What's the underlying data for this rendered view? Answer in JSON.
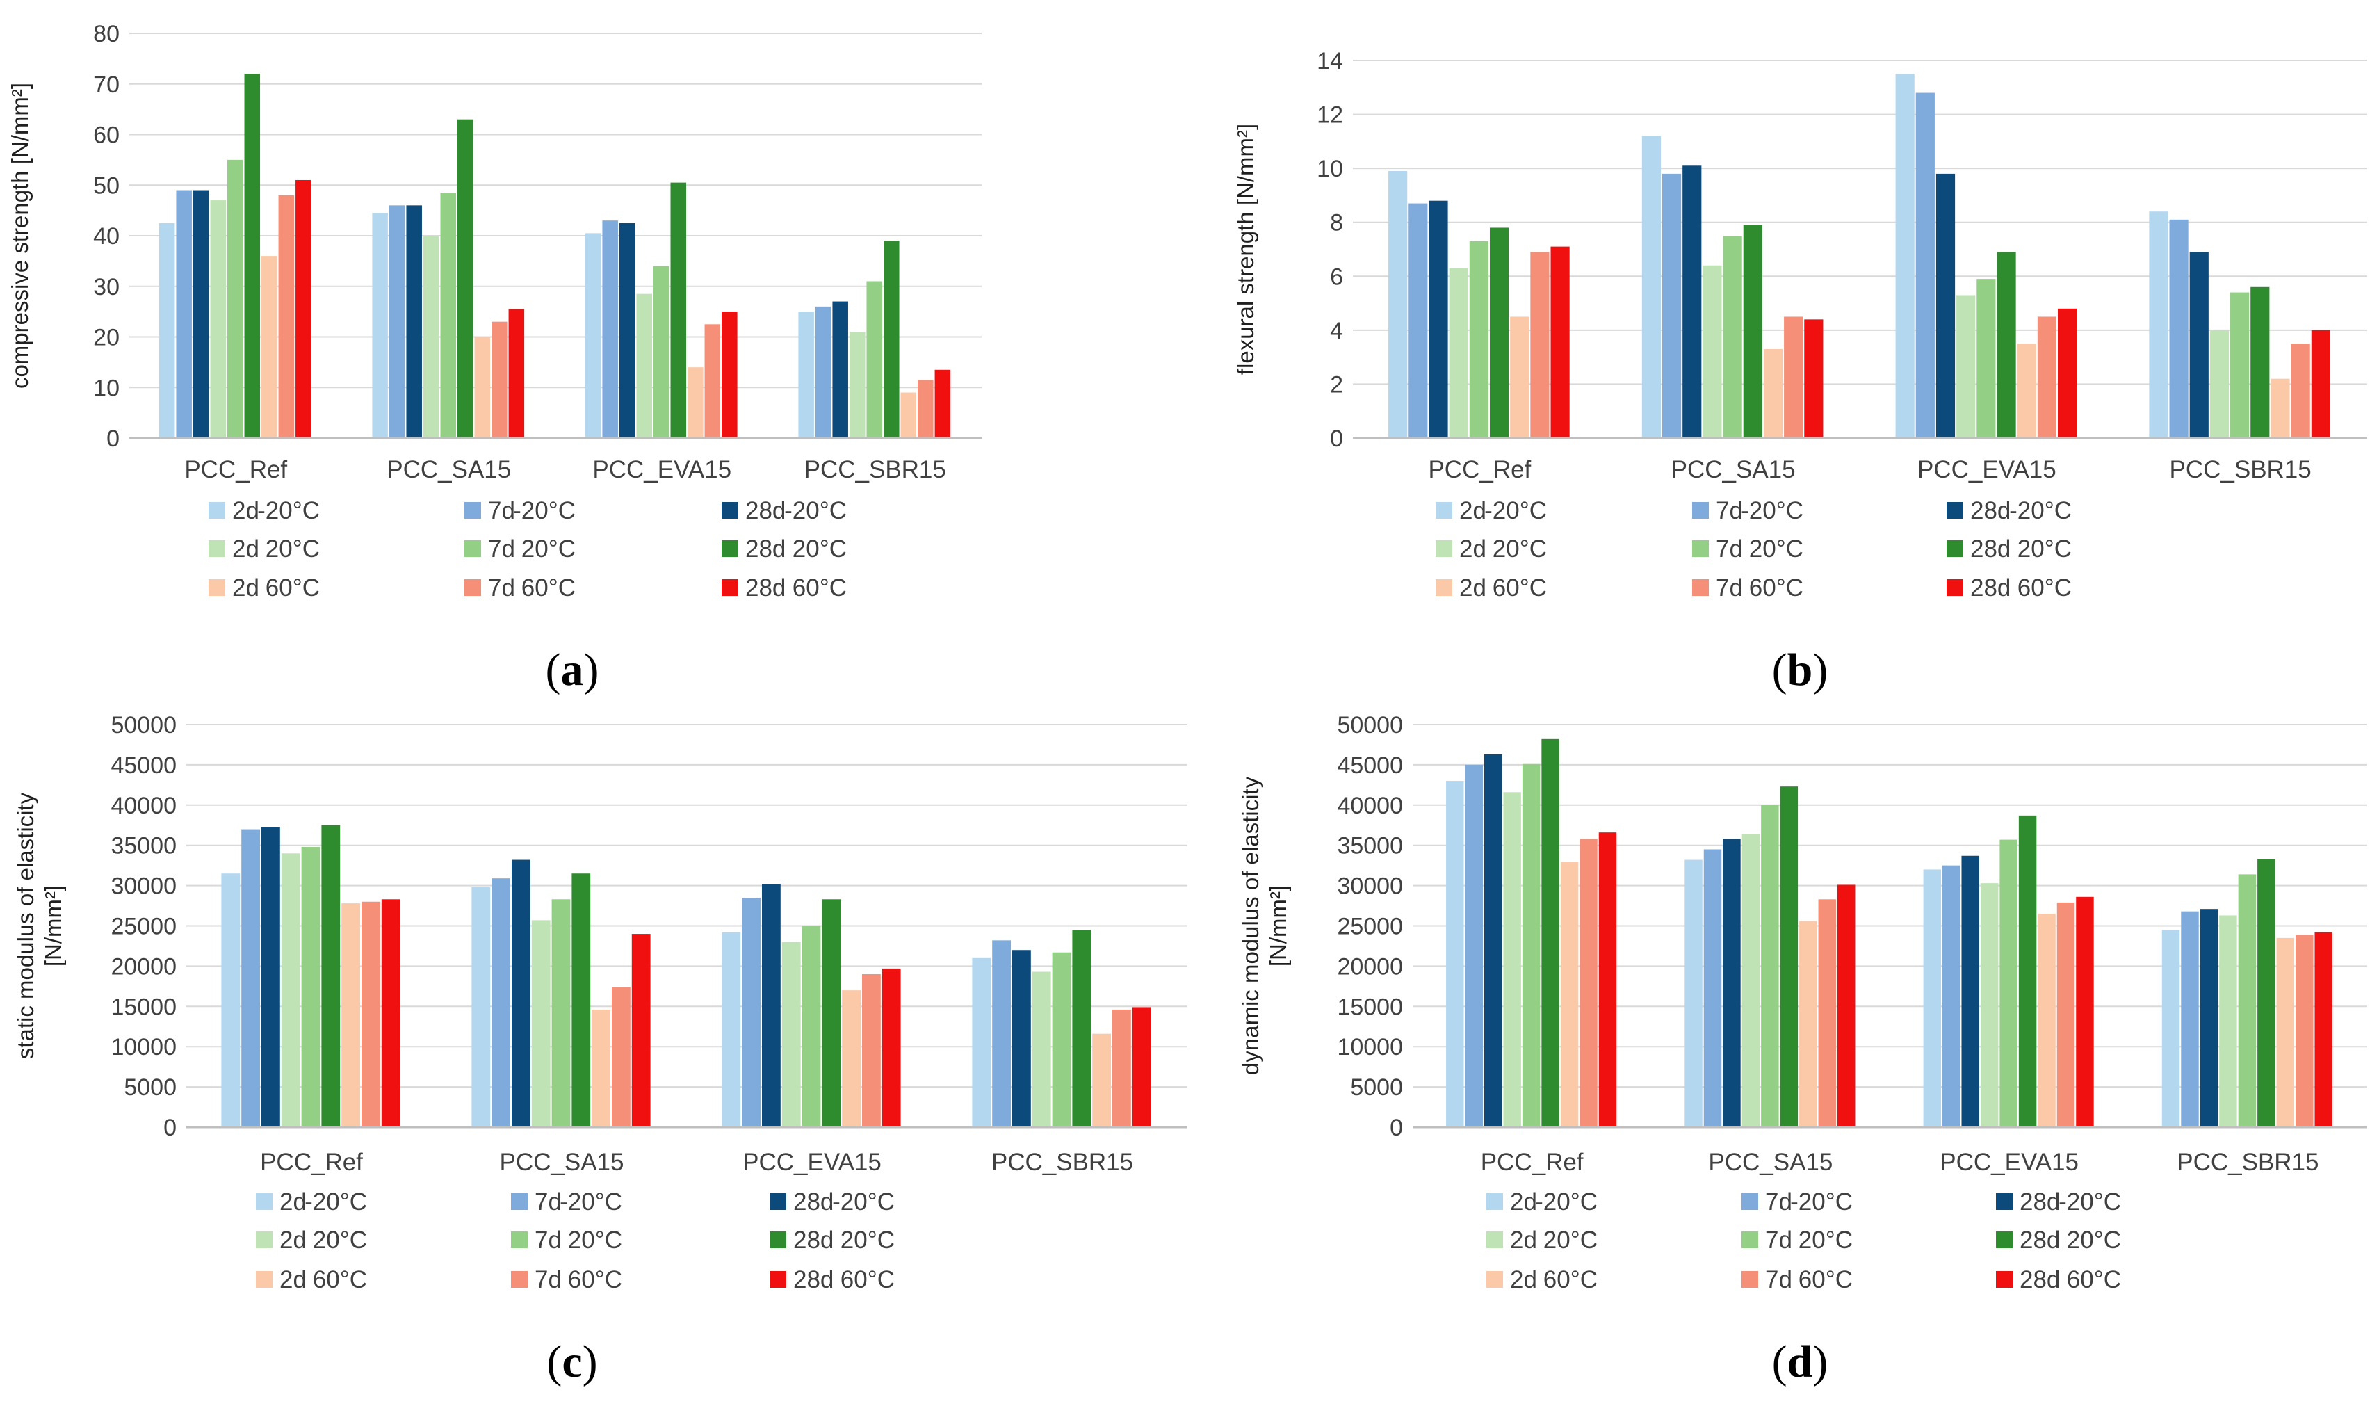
{
  "series_colors": [
    "#b4d7f0",
    "#7faadc",
    "#0b4a7a",
    "#bfe3b4",
    "#93cf84",
    "#2e8b2e",
    "#fcc9a8",
    "#f58f78",
    "#f01010"
  ],
  "chart_data": [
    {
      "type": "bar",
      "panel": "a",
      "panel_label": {
        "open": "(",
        "letter": "a",
        "close": ")"
      },
      "title": "",
      "xlabel": "",
      "ylabel": "compressive strength [N/mm²]",
      "ylim": [
        0,
        80
      ],
      "yticks": [
        "0",
        "10",
        "20",
        "30",
        "40",
        "50",
        "60",
        "70",
        "80"
      ],
      "categories": [
        "PCC_Ref",
        "PCC_SA15",
        "PCC_EVA15",
        "PCC_SBR15"
      ],
      "grid": true,
      "legend_position": "bottom",
      "series": [
        {
          "name": "2d -20°C",
          "age": "2d",
          "temp": "-20°C",
          "values": [
            42.5,
            44.5,
            40.5,
            25.0
          ]
        },
        {
          "name": "7d -20°C",
          "age": "7d",
          "temp": "-20°C",
          "values": [
            49.0,
            46.0,
            43.0,
            26.0
          ]
        },
        {
          "name": "28d -20°C",
          "age": "28d",
          "temp": "-20°C",
          "values": [
            49.0,
            46.0,
            42.5,
            27.0
          ]
        },
        {
          "name": "2d 20°C",
          "age": "2d",
          "temp": "20°C",
          "values": [
            47.0,
            40.0,
            28.5,
            21.0
          ]
        },
        {
          "name": "7d 20°C",
          "age": "7d",
          "temp": "20°C",
          "values": [
            55.0,
            48.5,
            34.0,
            31.0
          ]
        },
        {
          "name": "28d 20°C",
          "age": "28d",
          "temp": "20°C",
          "values": [
            72.0,
            63.0,
            50.5,
            39.0
          ]
        },
        {
          "name": "2d 60°C",
          "age": "2d",
          "temp": "60°C",
          "values": [
            36.0,
            20.0,
            14.0,
            9.0
          ]
        },
        {
          "name": "7d 60°C",
          "age": "7d",
          "temp": "60°C",
          "values": [
            48.0,
            23.0,
            22.5,
            11.5
          ]
        },
        {
          "name": "28d 60°C",
          "age": "28d",
          "temp": "60°C",
          "values": [
            51.0,
            25.5,
            25.0,
            13.5
          ]
        }
      ]
    },
    {
      "type": "bar",
      "panel": "b",
      "panel_label": {
        "open": "(",
        "letter": "b",
        "close": ")"
      },
      "title": "",
      "xlabel": "",
      "ylabel": "flexural strength [N/mm²]",
      "ylim": [
        0,
        14
      ],
      "yticks": [
        "0",
        "2",
        "4",
        "6",
        "8",
        "10",
        "12",
        "14"
      ],
      "categories": [
        "PCC_Ref",
        "PCC_SA15",
        "PCC_EVA15",
        "PCC_SBR15"
      ],
      "grid": true,
      "legend_position": "bottom",
      "series": [
        {
          "name": "2d -20°C",
          "age": "2d",
          "temp": "-20°C",
          "values": [
            9.9,
            11.2,
            13.5,
            8.4
          ]
        },
        {
          "name": "7d -20°C",
          "age": "7d",
          "temp": "-20°C",
          "values": [
            8.7,
            9.8,
            12.8,
            8.1
          ]
        },
        {
          "name": "28d -20°C",
          "age": "28d",
          "temp": "-20°C",
          "values": [
            8.8,
            10.1,
            9.8,
            6.9
          ]
        },
        {
          "name": "2d 20°C",
          "age": "2d",
          "temp": "20°C",
          "values": [
            6.3,
            6.4,
            5.3,
            4.0
          ]
        },
        {
          "name": "7d 20°C",
          "age": "7d",
          "temp": "20°C",
          "values": [
            7.3,
            7.5,
            5.9,
            5.4
          ]
        },
        {
          "name": "28d 20°C",
          "age": "28d",
          "temp": "20°C",
          "values": [
            7.8,
            7.9,
            6.9,
            5.6
          ]
        },
        {
          "name": "2d 60°C",
          "age": "2d",
          "temp": "60°C",
          "values": [
            4.5,
            3.3,
            3.5,
            2.2
          ]
        },
        {
          "name": "7d 60°C",
          "age": "7d",
          "temp": "60°C",
          "values": [
            6.9,
            4.5,
            4.5,
            3.5
          ]
        },
        {
          "name": "28d 60°C",
          "age": "28d",
          "temp": "60°C",
          "values": [
            7.1,
            4.4,
            4.8,
            4.0
          ]
        }
      ]
    },
    {
      "type": "bar",
      "panel": "c",
      "panel_label": {
        "open": "(",
        "letter": "c",
        "close": ")"
      },
      "title": "",
      "xlabel": "",
      "ylabel_lines": [
        "static modulus of elasticity",
        "[N/mm²]"
      ],
      "ylim": [
        0,
        50000
      ],
      "yticks": [
        "0",
        "5000",
        "10000",
        "15000",
        "20000",
        "25000",
        "30000",
        "35000",
        "40000",
        "45000",
        "50000"
      ],
      "categories": [
        "PCC_Ref",
        "PCC_SA15",
        "PCC_EVA15",
        "PCC_SBR15"
      ],
      "grid": true,
      "legend_position": "bottom",
      "series": [
        {
          "name": "2d -20°C",
          "age": "2d",
          "temp": "-20°C",
          "values": [
            31500,
            29800,
            24200,
            21000
          ]
        },
        {
          "name": "7d -20°C",
          "age": "7d",
          "temp": "-20°C",
          "values": [
            37000,
            30900,
            28500,
            23200
          ]
        },
        {
          "name": "28d -20°C",
          "age": "28d",
          "temp": "-20°C",
          "values": [
            37300,
            33200,
            30200,
            22000
          ]
        },
        {
          "name": "2d 20°C",
          "age": "2d",
          "temp": "20°C",
          "values": [
            34000,
            25700,
            23000,
            19300
          ]
        },
        {
          "name": "7d 20°C",
          "age": "7d",
          "temp": "20°C",
          "values": [
            34800,
            28300,
            25000,
            21700
          ]
        },
        {
          "name": "28d 20°C",
          "age": "28d",
          "temp": "20°C",
          "values": [
            37500,
            31500,
            28300,
            24500
          ]
        },
        {
          "name": "2d 60°C",
          "age": "2d",
          "temp": "60°C",
          "values": [
            27800,
            14600,
            17000,
            11600
          ]
        },
        {
          "name": "7d 60°C",
          "age": "7d",
          "temp": "60°C",
          "values": [
            28000,
            17400,
            19000,
            14600
          ]
        },
        {
          "name": "28d 60°C",
          "age": "28d",
          "temp": "60°C",
          "values": [
            28300,
            24000,
            19700,
            14900
          ]
        }
      ]
    },
    {
      "type": "bar",
      "panel": "d",
      "panel_label": {
        "open": "(",
        "letter": "d",
        "close": ")"
      },
      "title": "",
      "xlabel": "",
      "ylabel_lines": [
        "dynamic modulus of elasticity",
        "[N/mm²]"
      ],
      "ylim": [
        0,
        50000
      ],
      "yticks": [
        "0",
        "5000",
        "10000",
        "15000",
        "20000",
        "25000",
        "30000",
        "35000",
        "40000",
        "45000",
        "50000"
      ],
      "categories": [
        "PCC_Ref",
        "PCC_SA15",
        "PCC_EVA15",
        "PCC_SBR15"
      ],
      "grid": true,
      "legend_position": "bottom",
      "series": [
        {
          "name": "2d -20°C",
          "age": "2d",
          "temp": "-20°C",
          "values": [
            43000,
            33200,
            32000,
            24500
          ]
        },
        {
          "name": "7d -20°C",
          "age": "7d",
          "temp": "-20°C",
          "values": [
            45000,
            34500,
            32500,
            26800
          ]
        },
        {
          "name": "28d -20°C",
          "age": "28d",
          "temp": "-20°C",
          "values": [
            46300,
            35800,
            33700,
            27100
          ]
        },
        {
          "name": "2d 20°C",
          "age": "2d",
          "temp": "20°C",
          "values": [
            41600,
            36400,
            30300,
            26300
          ]
        },
        {
          "name": "7d 20°C",
          "age": "7d",
          "temp": "20°C",
          "values": [
            45100,
            40000,
            35700,
            31400
          ]
        },
        {
          "name": "28d 20°C",
          "age": "28d",
          "temp": "20°C",
          "values": [
            48200,
            42300,
            38700,
            33300
          ]
        },
        {
          "name": "2d 60°C",
          "age": "2d",
          "temp": "60°C",
          "values": [
            32900,
            25600,
            26500,
            23500
          ]
        },
        {
          "name": "7d 60°C",
          "age": "7d",
          "temp": "60°C",
          "values": [
            35800,
            28300,
            27900,
            23900
          ]
        },
        {
          "name": "28d 60°C",
          "age": "28d",
          "temp": "60°C",
          "values": [
            36600,
            30100,
            28600,
            24200
          ]
        }
      ]
    }
  ]
}
